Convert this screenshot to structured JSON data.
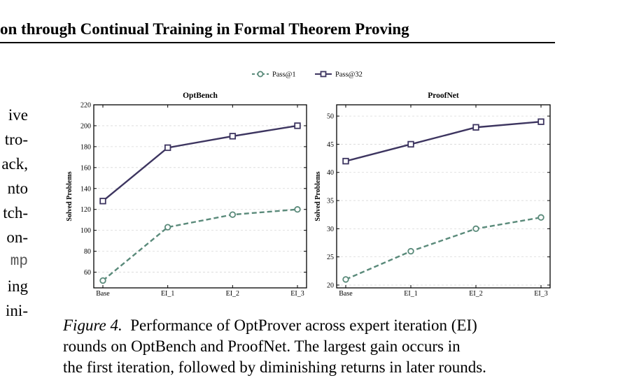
{
  "running_head": "on through Continual Training in Formal Theorem Proving",
  "body_fragments": [
    "ive",
    "tro-",
    "ack,",
    "nto",
    "tch-",
    "on-",
    "mp",
    "ing",
    "ini-"
  ],
  "caption": {
    "label": "Figure 4.",
    "lines": [
      "Performance of OptProver across expert iteration (EI)",
      "rounds on OptBench and ProofNet.  The largest gain occurs in",
      "the first iteration, followed by diminishing returns in later rounds."
    ]
  },
  "legend": {
    "placement": "top-center",
    "entries": [
      {
        "name": "Pass@1",
        "marker": "circle",
        "style": "dashed",
        "color": "#5a8a7a"
      },
      {
        "name": "Pass@32",
        "marker": "square",
        "style": "solid",
        "color": "#3d3560"
      }
    ]
  },
  "colors": {
    "pass1": "#5a8a7a",
    "pass32": "#3d3560",
    "grid": "#d8d8d8"
  },
  "chart_data": [
    {
      "type": "line",
      "title": "OptBench",
      "ylabel": "Solved Problems",
      "xlabel": "",
      "categories": [
        "Base",
        "EI_1",
        "EI_2",
        "EI_3"
      ],
      "ylim": [
        45,
        220
      ],
      "yticks": [
        60,
        80,
        100,
        120,
        140,
        160,
        180,
        200,
        220
      ],
      "grid": "horizontal-dashed",
      "series": [
        {
          "name": "Pass@1",
          "values": [
            52,
            103,
            115,
            120
          ]
        },
        {
          "name": "Pass@32",
          "values": [
            128,
            179,
            190,
            200
          ]
        }
      ]
    },
    {
      "type": "line",
      "title": "ProofNet",
      "ylabel": "Solved Problems",
      "xlabel": "",
      "categories": [
        "Base",
        "EI_1",
        "EI_2",
        "EI_3"
      ],
      "ylim": [
        19.5,
        52
      ],
      "yticks": [
        20,
        25,
        30,
        35,
        40,
        45,
        50
      ],
      "grid": "horizontal-dashed",
      "series": [
        {
          "name": "Pass@1",
          "values": [
            21,
            26,
            30,
            32
          ]
        },
        {
          "name": "Pass@32",
          "values": [
            42,
            45,
            48,
            49
          ]
        }
      ]
    }
  ]
}
